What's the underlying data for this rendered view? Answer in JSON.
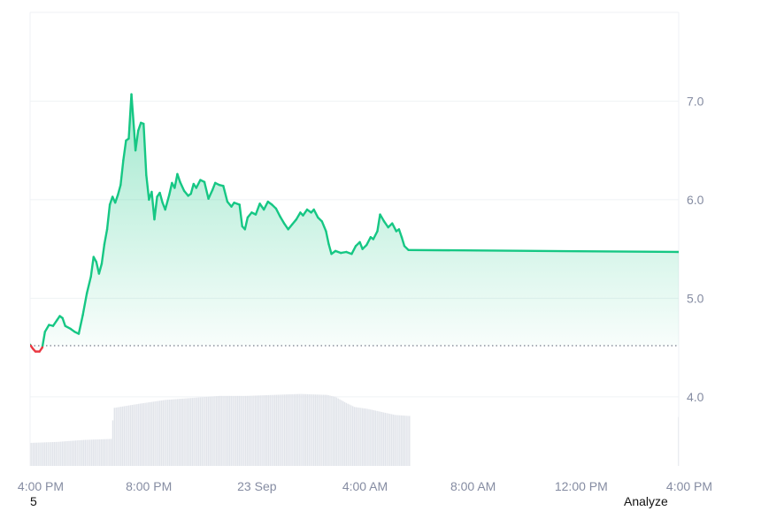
{
  "chart_data": {
    "type": "area",
    "title": "",
    "xlabel": "",
    "ylabel": "",
    "ylim": [
      3.3,
      7.9
    ],
    "y_ticks": [
      4.0,
      5.0,
      6.0,
      7.0
    ],
    "y_tick_labels": [
      "4.0",
      "5.0",
      "6.0",
      "7.0"
    ],
    "x_ticks": [
      {
        "label": "4:00 PM",
        "t": 0
      },
      {
        "label": "8:00 PM",
        "t": 4
      },
      {
        "label": "23 Sep",
        "t": 8
      },
      {
        "label": "4:00 AM",
        "t": 12
      },
      {
        "label": "8:00 AM",
        "t": 16
      },
      {
        "label": "12:00 PM",
        "t": 20
      },
      {
        "label": "4:00 PM",
        "t": 24
      }
    ],
    "baseline": 4.52,
    "grid": true,
    "colors": {
      "up": "#16c784",
      "down": "#ea3943",
      "volume": "#e1e4ea",
      "grid": "#eff2f5",
      "axis_text": "#858ca2"
    },
    "series": [
      {
        "values": [
          [
            0.0,
            4.53
          ],
          [
            0.1,
            4.49
          ],
          [
            0.2,
            4.46
          ],
          [
            0.35,
            4.46
          ],
          [
            0.45,
            4.5
          ],
          [
            0.55,
            4.66
          ],
          [
            0.7,
            4.73
          ],
          [
            0.85,
            4.72
          ],
          [
            1.0,
            4.78
          ],
          [
            1.1,
            4.82
          ],
          [
            1.2,
            4.8
          ],
          [
            1.3,
            4.72
          ],
          [
            1.5,
            4.69
          ],
          [
            1.65,
            4.66
          ],
          [
            1.8,
            4.64
          ],
          [
            1.95,
            4.83
          ],
          [
            2.1,
            5.05
          ],
          [
            2.25,
            5.22
          ],
          [
            2.35,
            5.42
          ],
          [
            2.45,
            5.37
          ],
          [
            2.55,
            5.25
          ],
          [
            2.65,
            5.35
          ],
          [
            2.75,
            5.55
          ],
          [
            2.85,
            5.7
          ],
          [
            2.95,
            5.95
          ],
          [
            3.05,
            6.03
          ],
          [
            3.15,
            5.97
          ],
          [
            3.25,
            6.05
          ],
          [
            3.35,
            6.15
          ],
          [
            3.45,
            6.4
          ],
          [
            3.55,
            6.6
          ],
          [
            3.65,
            6.62
          ],
          [
            3.75,
            7.07
          ],
          [
            3.85,
            6.7
          ],
          [
            3.9,
            6.5
          ],
          [
            4.0,
            6.7
          ],
          [
            4.1,
            6.78
          ],
          [
            4.2,
            6.77
          ],
          [
            4.3,
            6.25
          ],
          [
            4.4,
            6.0
          ],
          [
            4.5,
            6.08
          ],
          [
            4.6,
            5.8
          ],
          [
            4.7,
            6.03
          ],
          [
            4.8,
            6.07
          ],
          [
            4.9,
            5.97
          ],
          [
            5.0,
            5.9
          ],
          [
            5.15,
            6.05
          ],
          [
            5.25,
            6.17
          ],
          [
            5.35,
            6.12
          ],
          [
            5.45,
            6.26
          ],
          [
            5.55,
            6.18
          ],
          [
            5.7,
            6.09
          ],
          [
            5.85,
            6.04
          ],
          [
            5.95,
            6.06
          ],
          [
            6.05,
            6.16
          ],
          [
            6.15,
            6.12
          ],
          [
            6.3,
            6.2
          ],
          [
            6.45,
            6.18
          ],
          [
            6.6,
            6.01
          ],
          [
            6.75,
            6.1
          ],
          [
            6.85,
            6.17
          ],
          [
            7.0,
            6.15
          ],
          [
            7.15,
            6.14
          ],
          [
            7.3,
            5.98
          ],
          [
            7.45,
            5.93
          ],
          [
            7.55,
            5.97
          ],
          [
            7.75,
            5.95
          ],
          [
            7.85,
            5.73
          ],
          [
            7.95,
            5.7
          ],
          [
            8.05,
            5.82
          ],
          [
            8.2,
            5.87
          ],
          [
            8.35,
            5.85
          ],
          [
            8.5,
            5.96
          ],
          [
            8.65,
            5.9
          ],
          [
            8.8,
            5.98
          ],
          [
            8.95,
            5.95
          ],
          [
            9.1,
            5.91
          ],
          [
            9.25,
            5.83
          ],
          [
            9.4,
            5.76
          ],
          [
            9.55,
            5.7
          ],
          [
            9.7,
            5.75
          ],
          [
            9.85,
            5.8
          ],
          [
            10.0,
            5.87
          ],
          [
            10.1,
            5.84
          ],
          [
            10.25,
            5.9
          ],
          [
            10.4,
            5.87
          ],
          [
            10.5,
            5.9
          ],
          [
            10.65,
            5.82
          ],
          [
            10.8,
            5.78
          ],
          [
            10.95,
            5.68
          ],
          [
            11.05,
            5.55
          ],
          [
            11.15,
            5.45
          ],
          [
            11.3,
            5.48
          ],
          [
            11.5,
            5.46
          ],
          [
            11.7,
            5.47
          ],
          [
            11.9,
            5.45
          ],
          [
            12.05,
            5.53
          ],
          [
            12.2,
            5.57
          ],
          [
            12.3,
            5.5
          ],
          [
            12.45,
            5.54
          ],
          [
            12.6,
            5.62
          ],
          [
            12.7,
            5.6
          ],
          [
            12.85,
            5.68
          ],
          [
            12.95,
            5.85
          ],
          [
            13.1,
            5.78
          ],
          [
            13.25,
            5.72
          ],
          [
            13.4,
            5.76
          ],
          [
            13.55,
            5.68
          ],
          [
            13.65,
            5.7
          ],
          [
            13.75,
            5.62
          ],
          [
            13.85,
            5.53
          ],
          [
            14.0,
            5.49
          ],
          [
            24.0,
            5.47
          ]
        ]
      }
    ],
    "volume": [
      [
        0.0,
        0.23
      ],
      [
        1.0,
        0.24
      ],
      [
        2.0,
        0.26
      ],
      [
        3.0,
        0.27
      ],
      [
        3.1,
        0.58
      ],
      [
        4.0,
        0.62
      ],
      [
        5.0,
        0.66
      ],
      [
        6.0,
        0.68
      ],
      [
        7.0,
        0.7
      ],
      [
        8.0,
        0.7
      ],
      [
        9.0,
        0.71
      ],
      [
        10.0,
        0.72
      ],
      [
        11.0,
        0.71
      ],
      [
        11.3,
        0.69
      ],
      [
        11.7,
        0.63
      ],
      [
        12.0,
        0.59
      ],
      [
        12.5,
        0.57
      ],
      [
        13.0,
        0.54
      ],
      [
        13.5,
        0.51
      ],
      [
        14.0,
        0.5
      ],
      [
        14.1,
        0.0
      ],
      [
        23.85,
        0.0
      ],
      [
        23.95,
        0.49
      ]
    ]
  },
  "footer": {
    "left": "5",
    "right": "Analyze"
  }
}
